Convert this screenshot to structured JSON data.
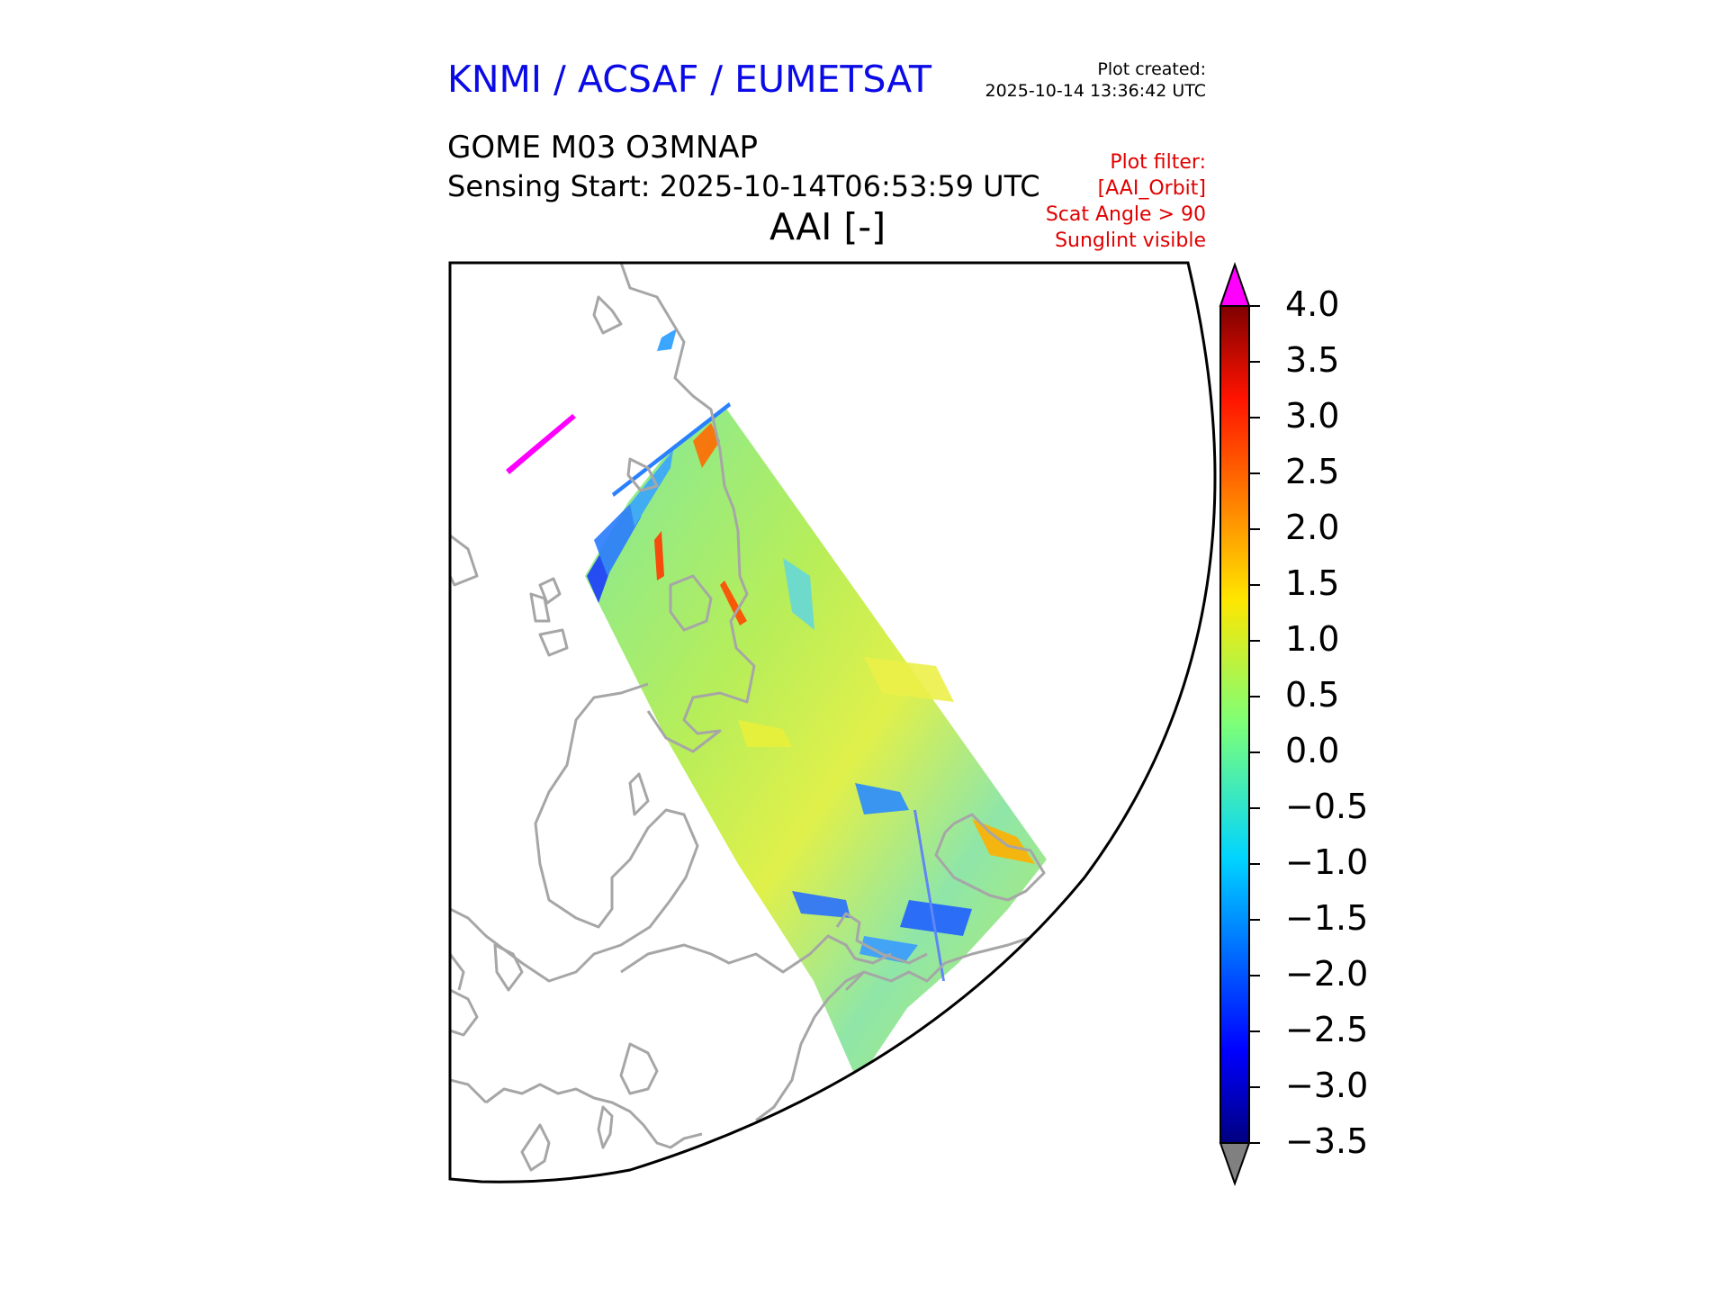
{
  "header": {
    "organisation": "KNMI / ACSAF / EUMETSAT",
    "plot_created_label": "Plot created:",
    "plot_created_time": "2025-10-14 13:36:42 UTC",
    "product": "GOME M03 O3MNAP",
    "sensing_start": "Sensing Start: 2025-10-14T06:53:59 UTC",
    "quantity": "AAI [-]"
  },
  "filters": [
    "Plot filter:",
    "[AAI_Orbit]",
    "Scat Angle > 90",
    "Sunglint visible"
  ],
  "colorbar": {
    "ticks": [
      "4.0",
      "3.5",
      "3.0",
      "2.5",
      "2.0",
      "1.5",
      "1.0",
      "0.5",
      "0.0",
      "−0.5",
      "−1.0",
      "−1.5",
      "−2.0",
      "−2.5",
      "−3.0",
      "−3.5"
    ],
    "min": -3.5,
    "max": 4.0,
    "over_color": "#ff00ff",
    "under_color": "#808080"
  },
  "colors": {
    "coastline": "#a6a6a6",
    "frame": "#000000",
    "swath_bg": "#9be870"
  }
}
